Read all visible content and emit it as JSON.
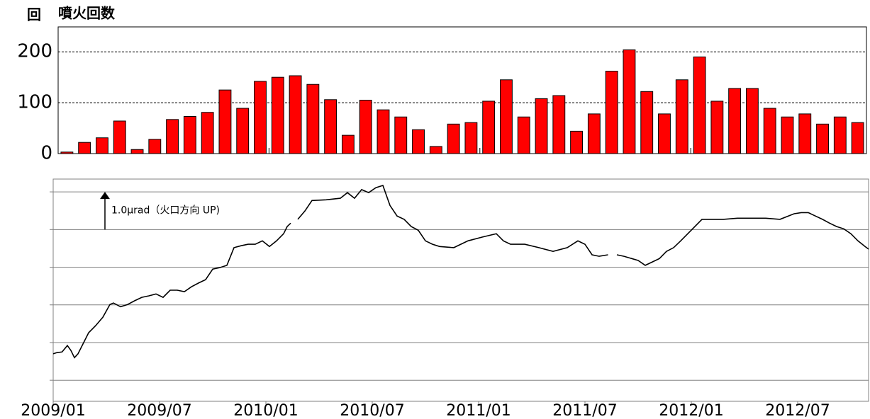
{
  "chart_data": [
    {
      "type": "bar",
      "title": "噴火回数",
      "y_label": "回",
      "categories": [
        null,
        null,
        null,
        null,
        null,
        null,
        null,
        null,
        null,
        null,
        null,
        null,
        null,
        null,
        null,
        null,
        null,
        null,
        null,
        null,
        null,
        null,
        null,
        null,
        null,
        null,
        null,
        null,
        null,
        null,
        null,
        null,
        null,
        null,
        null,
        null,
        null,
        null,
        null,
        null,
        null,
        null,
        null,
        null,
        null,
        null
      ],
      "values": [
        3,
        22,
        31,
        64,
        8,
        28,
        67,
        73,
        81,
        125,
        89,
        142,
        150,
        153,
        136,
        106,
        36,
        105,
        86,
        72,
        47,
        14,
        58,
        61,
        103,
        145,
        72,
        108,
        114,
        44,
        78,
        162,
        204,
        122,
        78,
        145,
        190,
        103,
        128,
        128,
        89,
        72,
        78,
        58,
        72,
        61
      ],
      "color": "#ff0000",
      "ylim": [
        0,
        249
      ],
      "yticks": [
        0,
        100,
        200
      ],
      "grid": true
    },
    {
      "type": "line",
      "color": "#000000",
      "annotation": "1.0μrad（火口方向 UP)",
      "x": [
        0,
        0.2,
        0.5,
        0.8,
        1.0,
        1.2,
        1.4,
        1.7,
        2.0,
        2.4,
        2.8,
        3.2,
        3.4,
        3.8,
        4.2,
        4.6,
        5.0,
        5.4,
        5.8,
        6.2,
        6.6,
        7.0,
        7.4,
        7.8,
        8.2,
        8.6,
        9.0,
        9.4,
        9.8,
        10.2,
        10.6,
        11.0,
        11.4,
        11.8,
        12.2,
        12.6,
        13.0,
        13.2,
        13.4,
        13.6,
        13.8,
        14.2,
        14.6,
        15.4,
        16.2,
        16.6,
        17.0,
        17.4,
        17.8,
        18.2,
        18.6,
        19.0,
        19.4,
        19.8,
        20.2,
        20.6,
        21.0,
        21.4,
        21.8,
        22.6,
        23.4,
        24.2,
        25.0,
        25.4,
        25.8,
        26.6,
        27.4,
        28.2,
        29.0,
        29.6,
        30.0,
        30.4,
        30.8,
        31.3,
        31.5,
        31.8,
        32.2,
        33.0,
        33.4,
        33.8,
        34.2,
        34.6,
        35.0,
        35.4,
        35.8,
        36.2,
        36.6,
        37.0,
        37.8,
        38.6,
        39.4,
        40.2,
        41.0,
        41.8,
        42.2,
        42.6,
        43.0,
        43.4,
        43.8,
        44.2,
        44.6,
        45.0,
        45.4,
        45.8,
        46.0
      ],
      "values": [
        1.7,
        1.73,
        1.75,
        1.92,
        1.79,
        1.6,
        1.7,
        1.98,
        2.26,
        2.45,
        2.67,
        3.01,
        3.05,
        2.95,
        3.01,
        3.11,
        3.2,
        3.24,
        3.29,
        3.2,
        3.39,
        3.39,
        3.35,
        3.48,
        3.58,
        3.67,
        3.95,
        3.99,
        4.05,
        4.52,
        4.57,
        4.61,
        4.61,
        4.7,
        4.55,
        4.7,
        4.89,
        5.08,
        5.17,
        null,
        5.27,
        5.49,
        5.77,
        5.79,
        5.83,
        5.98,
        5.83,
        6.06,
        5.98,
        6.11,
        6.17,
        5.64,
        5.36,
        5.27,
        5.08,
        4.98,
        4.7,
        4.61,
        4.55,
        4.52,
        4.7,
        4.8,
        4.89,
        4.7,
        4.61,
        4.61,
        4.52,
        4.42,
        4.52,
        4.7,
        4.61,
        4.33,
        4.29,
        4.33,
        null,
        4.33,
        4.29,
        4.18,
        4.05,
        4.14,
        4.23,
        4.42,
        4.52,
        4.7,
        4.89,
        5.08,
        5.27,
        5.27,
        5.27,
        5.3,
        5.3,
        5.3,
        5.27,
        5.42,
        5.45,
        5.45,
        5.36,
        5.27,
        5.17,
        5.08,
        5.02,
        4.89,
        4.7,
        4.55,
        4.48
      ],
      "xlim": [
        0,
        46
      ],
      "xticks": [
        {
          "value": 0,
          "label": "2009/01"
        },
        {
          "value": 6,
          "label": "2009/07"
        },
        {
          "value": 12,
          "label": "2010/01"
        },
        {
          "value": 18,
          "label": "2010/07"
        },
        {
          "value": 24,
          "label": "2011/01"
        },
        {
          "value": 30,
          "label": "2011/07"
        },
        {
          "value": 36,
          "label": "2012/01"
        },
        {
          "value": 42,
          "label": "2012/07"
        }
      ],
      "ylim": [
        0.44,
        6.34
      ],
      "ygrid": [
        1,
        2,
        3,
        4,
        5,
        6
      ]
    }
  ]
}
